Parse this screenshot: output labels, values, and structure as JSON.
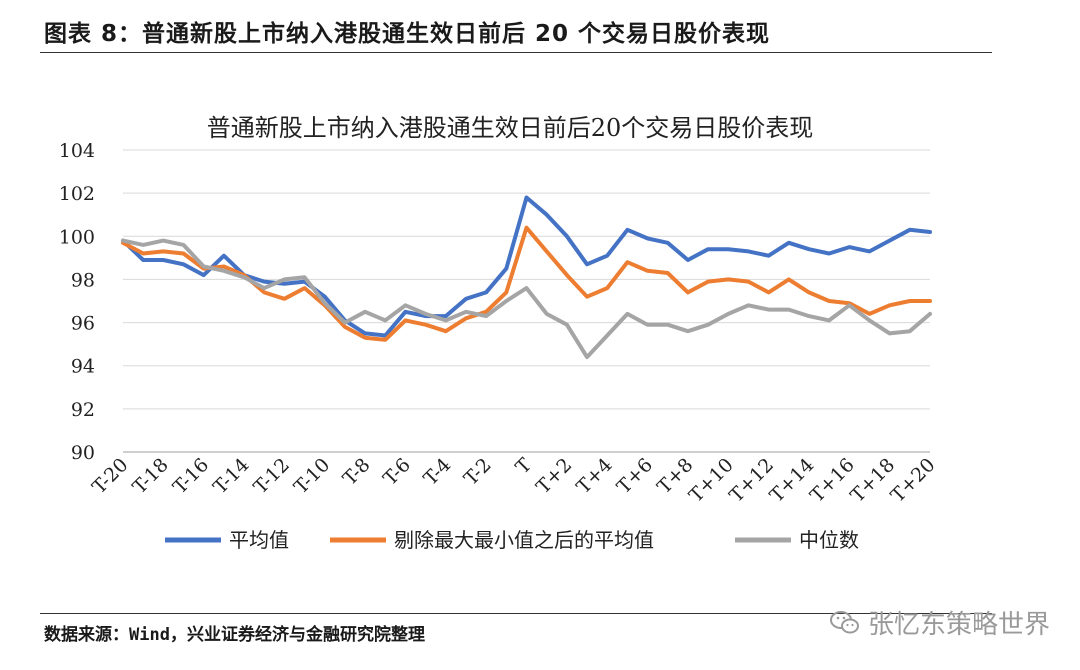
{
  "figure": {
    "header": "图表 8：普通新股上市纳入港股通生效日前后 20 个交易日股价表现",
    "source": "数据来源：Wind，兴业证券经济与金融研究院整理",
    "watermark": "张忆东策略世界"
  },
  "colors": {
    "series": [
      "#4472C4",
      "#ED7D31",
      "#A5A5A5"
    ],
    "grid": "#D9D9D9",
    "axis": "#BFBFBF"
  },
  "chart_data": {
    "type": "line",
    "title": "普通新股上市纳入港股通生效日前后20个交易日股价表现",
    "xlabel": "",
    "ylabel": "",
    "ylim": [
      90,
      104
    ],
    "yticks": [
      90,
      92,
      94,
      96,
      98,
      100,
      102,
      104
    ],
    "grid": true,
    "legend_position": "bottom",
    "x": [
      "T-20",
      "T-19",
      "T-18",
      "T-17",
      "T-16",
      "T-15",
      "T-14",
      "T-13",
      "T-12",
      "T-11",
      "T-10",
      "T-9",
      "T-8",
      "T-7",
      "T-6",
      "T-5",
      "T-4",
      "T-3",
      "T-2",
      "T-1",
      "T",
      "T+1",
      "T+2",
      "T+3",
      "T+4",
      "T+5",
      "T+6",
      "T+7",
      "T+8",
      "T+9",
      "T+10",
      "T+11",
      "T+12",
      "T+13",
      "T+14",
      "T+15",
      "T+16",
      "T+17",
      "T+18",
      "T+19",
      "T+20"
    ],
    "x_tick_labels": [
      "T-20",
      "T-18",
      "T-16",
      "T-14",
      "T-12",
      "T-10",
      "T-8",
      "T-6",
      "T-4",
      "T-2",
      "T",
      "T+2",
      "T+4",
      "T+6",
      "T+8",
      "T+10",
      "T+12",
      "T+14",
      "T+16",
      "T+18",
      "T+20"
    ],
    "series": [
      {
        "name": "平均值",
        "values": [
          99.8,
          98.9,
          98.9,
          98.7,
          98.2,
          99.1,
          98.2,
          97.9,
          97.8,
          97.9,
          97.2,
          96.1,
          95.5,
          95.4,
          96.5,
          96.3,
          96.3,
          97.1,
          97.4,
          98.5,
          101.8,
          101.0,
          100.0,
          98.7,
          99.1,
          100.3,
          99.9,
          99.7,
          98.9,
          99.4,
          99.4,
          99.3,
          99.1,
          99.7,
          99.4,
          99.2,
          99.5,
          99.3,
          99.8,
          100.3,
          100.2
        ]
      },
      {
        "name": "剔除最大最小值之后的平均值",
        "values": [
          99.7,
          99.2,
          99.3,
          99.2,
          98.5,
          98.6,
          98.2,
          97.4,
          97.1,
          97.6,
          96.8,
          95.8,
          95.3,
          95.2,
          96.1,
          95.9,
          95.6,
          96.2,
          96.5,
          97.4,
          100.4,
          99.3,
          98.2,
          97.2,
          97.6,
          98.8,
          98.4,
          98.3,
          97.4,
          97.9,
          98.0,
          97.9,
          97.4,
          98.0,
          97.4,
          97.0,
          96.9,
          96.4,
          96.8,
          97.0,
          97.0
        ]
      },
      {
        "name": "中位数",
        "values": [
          99.8,
          99.6,
          99.8,
          99.6,
          98.6,
          98.4,
          98.1,
          97.6,
          98.0,
          98.1,
          96.9,
          96.0,
          96.5,
          96.1,
          96.8,
          96.4,
          96.1,
          96.5,
          96.3,
          97.0,
          97.6,
          96.4,
          95.9,
          94.4,
          95.4,
          96.4,
          95.9,
          95.9,
          95.6,
          95.9,
          96.4,
          96.8,
          96.6,
          96.6,
          96.3,
          96.1,
          96.8,
          96.1,
          95.5,
          95.6,
          96.4
        ]
      }
    ]
  }
}
